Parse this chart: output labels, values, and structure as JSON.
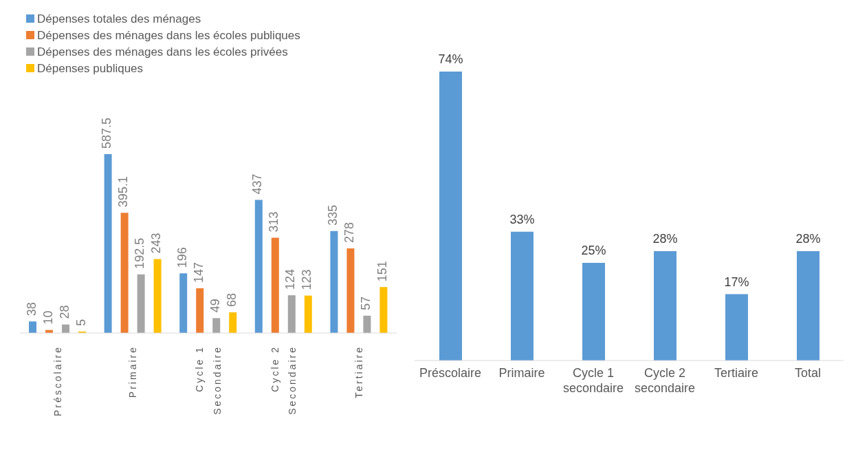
{
  "chart_data": [
    {
      "type": "bar",
      "categories": [
        "Préscolaire",
        "Primaire",
        "Cycle 1\nSecondaire",
        "Cycle 2\nSecondaire",
        "Tertiaire"
      ],
      "series": [
        {
          "name": "Dépenses totales des ménages",
          "color": "#5b9bd5",
          "values": [
            38,
            587.5,
            196,
            437,
            335
          ]
        },
        {
          "name": "Dépenses des ménages dans les écoles publiques",
          "color": "#ed7d31",
          "values": [
            10,
            395.1,
            147,
            313,
            278
          ]
        },
        {
          "name": "Dépenses des ménages dans les écoles privées",
          "color": "#a5a5a5",
          "values": [
            28,
            192.5,
            49,
            124,
            57
          ]
        },
        {
          "name": "Dépenses publiques",
          "color": "#ffc000",
          "values": [
            5,
            243,
            68,
            123,
            151
          ]
        }
      ],
      "data_labels": true,
      "legend": "top left"
    },
    {
      "type": "bar",
      "categories": [
        "Préscolaire",
        "Primaire",
        "Cycle 1\nsecondaire",
        "Cycle 2\nsecondaire",
        "Tertiaire",
        "Total"
      ],
      "values": [
        74,
        33,
        25,
        28,
        17,
        28
      ],
      "color": "#5b9bd5",
      "value_labels": [
        "74%",
        "33%",
        "25%",
        "28%",
        "17%",
        "28%"
      ]
    }
  ]
}
